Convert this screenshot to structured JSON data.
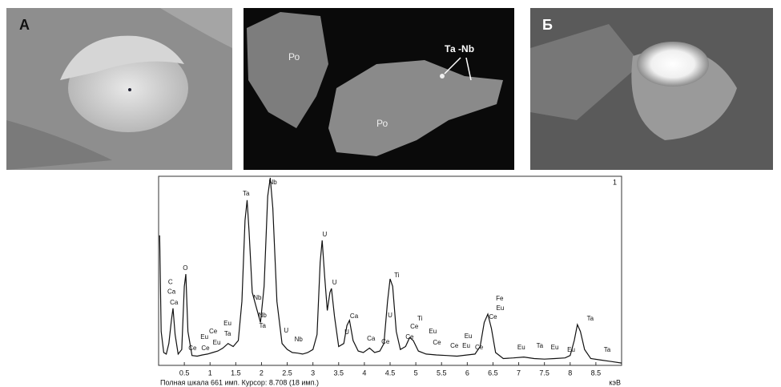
{
  "panels": [
    {
      "label": "А"
    },
    {
      "labels": [
        "Ро",
        "Ро",
        "Та -Nb"
      ]
    },
    {
      "label": "Б"
    }
  ],
  "chart_data": {
    "type": "line",
    "panel_number": "1",
    "footer": "Полная шкала 661 имп. Курсор: 8.708  (18 имп.)",
    "x_label": "кэВ",
    "xlim": [
      0,
      9.0
    ],
    "ylim": [
      0,
      661
    ],
    "xticks": [
      0.5,
      1,
      1.5,
      2,
      2.5,
      3,
      3.5,
      4,
      4.5,
      5,
      5.5,
      6,
      6.5,
      7,
      7.5,
      8,
      8.5
    ],
    "color": "#111111",
    "x": [
      0.02,
      0.05,
      0.1,
      0.15,
      0.2,
      0.25,
      0.28,
      0.32,
      0.38,
      0.45,
      0.5,
      0.53,
      0.57,
      0.65,
      0.75,
      0.85,
      0.95,
      1.05,
      1.15,
      1.25,
      1.35,
      1.45,
      1.55,
      1.62,
      1.68,
      1.72,
      1.76,
      1.82,
      1.9,
      1.98,
      2.05,
      2.12,
      2.17,
      2.22,
      2.3,
      2.4,
      2.5,
      2.6,
      2.7,
      2.8,
      2.9,
      3.0,
      3.08,
      3.14,
      3.18,
      3.23,
      3.28,
      3.33,
      3.36,
      3.42,
      3.5,
      3.6,
      3.66,
      3.71,
      3.78,
      3.88,
      3.98,
      4.1,
      4.2,
      4.3,
      4.38,
      4.45,
      4.5,
      4.55,
      4.62,
      4.7,
      4.8,
      4.88,
      4.95,
      5.05,
      5.2,
      5.4,
      5.6,
      5.8,
      6.0,
      6.15,
      6.25,
      6.33,
      6.4,
      6.47,
      6.55,
      6.7,
      6.9,
      7.1,
      7.3,
      7.5,
      7.7,
      7.9,
      8.0,
      8.08,
      8.14,
      8.2,
      8.28,
      8.4,
      8.6,
      8.8,
      9.0
    ],
    "values": [
      470,
      150,
      80,
      75,
      110,
      190,
      227,
      140,
      75,
      90,
      300,
      341,
      150,
      70,
      68,
      72,
      75,
      80,
      85,
      95,
      110,
      100,
      120,
      250,
      520,
      587,
      480,
      280,
      230,
      180,
      300,
      600,
      661,
      560,
      250,
      110,
      90,
      80,
      78,
      75,
      80,
      90,
      140,
      380,
      453,
      330,
      220,
      280,
      293,
      200,
      100,
      110,
      170,
      187,
      120,
      85,
      80,
      95,
      80,
      85,
      110,
      250,
      325,
      300,
      150,
      90,
      100,
      130,
      120,
      85,
      75,
      72,
      70,
      68,
      72,
      75,
      100,
      180,
      208,
      160,
      80,
      60,
      62,
      65,
      60,
      58,
      60,
      62,
      70,
      120,
      173,
      150,
      90,
      60,
      55,
      50,
      45
    ],
    "annotations": [
      {
        "text": "C",
        "x": 0.23,
        "y": 314
      },
      {
        "text": "Ca",
        "x": 0.25,
        "y": 282
      },
      {
        "text": "Ca",
        "x": 0.3,
        "y": 245
      },
      {
        "text": "O",
        "x": 0.52,
        "y": 360
      },
      {
        "text": "Ce",
        "x": 0.66,
        "y": 93
      },
      {
        "text": "Ce",
        "x": 0.91,
        "y": 93
      },
      {
        "text": "Eu",
        "x": 0.89,
        "y": 131
      },
      {
        "text": "Eu",
        "x": 1.13,
        "y": 112
      },
      {
        "text": "Ce",
        "x": 1.06,
        "y": 149
      },
      {
        "text": "Eu",
        "x": 1.34,
        "y": 176
      },
      {
        "text": "Ta",
        "x": 1.34,
        "y": 141
      },
      {
        "text": "Ta",
        "x": 1.7,
        "y": 608
      },
      {
        "text": "Nb",
        "x": 2.22,
        "y": 645
      },
      {
        "text": "Nb",
        "x": 1.92,
        "y": 261
      },
      {
        "text": "Nb",
        "x": 2.02,
        "y": 203
      },
      {
        "text": "Ta",
        "x": 2.02,
        "y": 168
      },
      {
        "text": "U",
        "x": 2.48,
        "y": 152
      },
      {
        "text": "Nb",
        "x": 2.72,
        "y": 123
      },
      {
        "text": "U",
        "x": 3.23,
        "y": 472
      },
      {
        "text": "U",
        "x": 3.42,
        "y": 312
      },
      {
        "text": "U",
        "x": 3.66,
        "y": 147
      },
      {
        "text": "Ca",
        "x": 3.8,
        "y": 200
      },
      {
        "text": "Ca",
        "x": 4.13,
        "y": 125
      },
      {
        "text": "Ce",
        "x": 4.41,
        "y": 115
      },
      {
        "text": "U",
        "x": 4.5,
        "y": 203
      },
      {
        "text": "Ti",
        "x": 4.63,
        "y": 336
      },
      {
        "text": "Ti",
        "x": 5.08,
        "y": 192
      },
      {
        "text": "Ce",
        "x": 4.97,
        "y": 165
      },
      {
        "text": "Ce",
        "x": 4.88,
        "y": 131
      },
      {
        "text": "Eu",
        "x": 5.33,
        "y": 149
      },
      {
        "text": "Ce",
        "x": 5.41,
        "y": 112
      },
      {
        "text": "Ce",
        "x": 5.75,
        "y": 101
      },
      {
        "text": "Eu",
        "x": 6.02,
        "y": 133
      },
      {
        "text": "Eu",
        "x": 5.98,
        "y": 101
      },
      {
        "text": "Ce",
        "x": 6.23,
        "y": 96
      },
      {
        "text": "Fe",
        "x": 6.63,
        "y": 259
      },
      {
        "text": "Eu",
        "x": 6.64,
        "y": 227
      },
      {
        "text": "Ce",
        "x": 6.5,
        "y": 197
      },
      {
        "text": "Eu",
        "x": 7.05,
        "y": 96
      },
      {
        "text": "Ta",
        "x": 7.41,
        "y": 101
      },
      {
        "text": "Eu",
        "x": 7.7,
        "y": 96
      },
      {
        "text": "Eu",
        "x": 8.02,
        "y": 88
      },
      {
        "text": "Ta",
        "x": 8.39,
        "y": 192
      },
      {
        "text": "Ta",
        "x": 8.72,
        "y": 88
      }
    ]
  }
}
